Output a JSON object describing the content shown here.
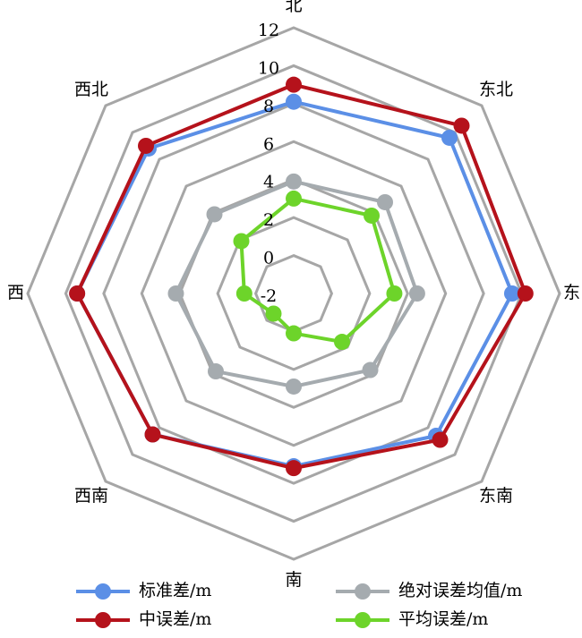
{
  "chart_data": {
    "type": "radar",
    "categories": [
      "北",
      "东北",
      "东",
      "东南",
      "南",
      "西南",
      "西",
      "西北"
    ],
    "ylim": [
      -2,
      12
    ],
    "yticks": [
      -2,
      0,
      2,
      4,
      6,
      8,
      10,
      12
    ],
    "series": [
      {
        "name": "标准差/m",
        "color": "#5b8fe6",
        "values": [
          8.1,
          9.6,
          9.5,
          8.6,
          7.1,
          8.5,
          9.4,
          8.8
        ]
      },
      {
        "name": "绝对误差均值/m",
        "color": "#a5abaf",
        "values": [
          3.9,
          4.8,
          4.5,
          3.7,
          2.9,
          3.8,
          4.2,
          3.9
        ]
      },
      {
        "name": "中误差/m",
        "color": "#b5121b",
        "values": [
          9.0,
          10.5,
          10.2,
          8.9,
          7.2,
          8.5,
          9.4,
          9.0
        ]
      },
      {
        "name": "平均误差/m",
        "color": "#6dd42a",
        "values": [
          3.0,
          3.8,
          3.3,
          1.6,
          0.1,
          -0.5,
          0.6,
          1.9
        ]
      }
    ]
  }
}
